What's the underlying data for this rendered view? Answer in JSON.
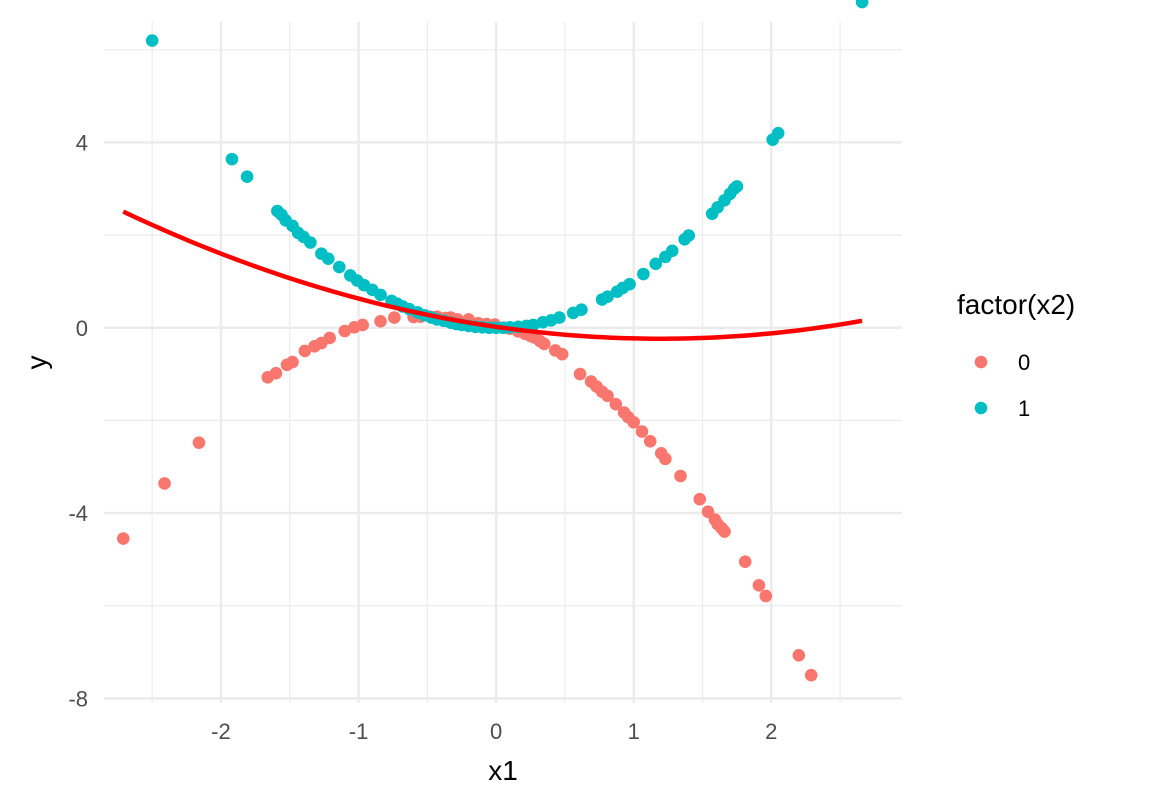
{
  "chart_data": {
    "type": "scatter",
    "title": "",
    "xlabel": "x1",
    "ylabel": "y",
    "xlim": [
      -2.85,
      2.95
    ],
    "ylim": [
      -8.1,
      6.6
    ],
    "x_ticks": [
      -2,
      -1,
      0,
      1,
      2
    ],
    "x_tick_labels": [
      "-2",
      "-1",
      "0",
      "1",
      "2"
    ],
    "y_ticks": [
      -8,
      -4,
      0,
      4
    ],
    "y_tick_labels": [
      "-8",
      "-4",
      "0",
      "4"
    ],
    "grid": true,
    "legend": {
      "title": "factor(x2)",
      "position": "right",
      "entries": [
        {
          "label": "0",
          "color": "#F8766D"
        },
        {
          "label": "1",
          "color": "#00BFC4"
        }
      ]
    },
    "series": [
      {
        "name": "0",
        "color": "#F8766D",
        "points": [
          [
            -2.71,
            -4.55
          ],
          [
            -2.41,
            -3.36
          ],
          [
            -2.16,
            -2.48
          ],
          [
            -1.66,
            -1.07
          ],
          [
            -1.6,
            -0.98
          ],
          [
            -1.52,
            -0.8
          ],
          [
            -1.48,
            -0.74
          ],
          [
            -1.39,
            -0.5
          ],
          [
            -1.32,
            -0.4
          ],
          [
            -1.27,
            -0.33
          ],
          [
            -1.21,
            -0.22
          ],
          [
            -1.1,
            -0.07
          ],
          [
            -1.03,
            0.01
          ],
          [
            -0.97,
            0.06
          ],
          [
            -0.84,
            0.14
          ],
          [
            -0.74,
            0.22
          ],
          [
            -0.6,
            0.23
          ],
          [
            -0.55,
            0.24
          ],
          [
            -0.48,
            0.24
          ],
          [
            -0.43,
            0.24
          ],
          [
            -0.37,
            0.21
          ],
          [
            -0.33,
            0.22
          ],
          [
            -0.28,
            0.18
          ],
          [
            -0.2,
            0.18
          ],
          [
            -0.13,
            0.1
          ],
          [
            -0.07,
            0.08
          ],
          [
            -0.01,
            0.07
          ],
          [
            0.06,
            0.0
          ],
          [
            0.1,
            -0.02
          ],
          [
            0.16,
            -0.08
          ],
          [
            0.21,
            -0.13
          ],
          [
            0.25,
            -0.18
          ],
          [
            0.28,
            -0.21
          ],
          [
            0.32,
            -0.29
          ],
          [
            0.35,
            -0.35
          ],
          [
            0.43,
            -0.49
          ],
          [
            0.48,
            -0.57
          ],
          [
            0.61,
            -1.0
          ],
          [
            0.69,
            -1.16
          ],
          [
            0.73,
            -1.27
          ],
          [
            0.77,
            -1.38
          ],
          [
            0.81,
            -1.47
          ],
          [
            0.87,
            -1.65
          ],
          [
            0.93,
            -1.83
          ],
          [
            0.96,
            -1.93
          ],
          [
            1.0,
            -2.04
          ],
          [
            1.06,
            -2.24
          ],
          [
            1.12,
            -2.45
          ],
          [
            1.2,
            -2.71
          ],
          [
            1.23,
            -2.83
          ],
          [
            1.34,
            -3.2
          ],
          [
            1.48,
            -3.7
          ],
          [
            1.54,
            -3.97
          ],
          [
            1.59,
            -4.14
          ],
          [
            1.61,
            -4.24
          ],
          [
            1.64,
            -4.33
          ],
          [
            1.66,
            -4.4
          ],
          [
            1.81,
            -5.05
          ],
          [
            1.91,
            -5.56
          ],
          [
            1.96,
            -5.79
          ],
          [
            2.2,
            -7.07
          ],
          [
            2.29,
            -7.5
          ]
        ]
      },
      {
        "name": "1",
        "color": "#00BFC4",
        "points": [
          [
            -2.5,
            6.2
          ],
          [
            -1.92,
            3.64
          ],
          [
            -1.81,
            3.26
          ],
          [
            -1.59,
            2.52
          ],
          [
            -1.56,
            2.44
          ],
          [
            -1.53,
            2.32
          ],
          [
            -1.48,
            2.2
          ],
          [
            -1.44,
            2.05
          ],
          [
            -1.4,
            1.96
          ],
          [
            -1.35,
            1.84
          ],
          [
            -1.27,
            1.6
          ],
          [
            -1.22,
            1.49
          ],
          [
            -1.14,
            1.31
          ],
          [
            -1.06,
            1.13
          ],
          [
            -1.01,
            1.02
          ],
          [
            -0.96,
            0.92
          ],
          [
            -0.9,
            0.82
          ],
          [
            -0.84,
            0.71
          ],
          [
            -0.76,
            0.58
          ],
          [
            -0.72,
            0.52
          ],
          [
            -0.68,
            0.46
          ],
          [
            -0.63,
            0.4
          ],
          [
            -0.57,
            0.33
          ],
          [
            -0.52,
            0.27
          ],
          [
            -0.47,
            0.22
          ],
          [
            -0.43,
            0.18
          ],
          [
            -0.38,
            0.15
          ],
          [
            -0.33,
            0.11
          ],
          [
            -0.29,
            0.08
          ],
          [
            -0.25,
            0.06
          ],
          [
            -0.2,
            0.04
          ],
          [
            -0.15,
            0.02
          ],
          [
            -0.1,
            0.01
          ],
          [
            -0.05,
            0.0
          ],
          [
            0.0,
            0.0
          ],
          [
            0.05,
            0.0
          ],
          [
            0.1,
            0.01
          ],
          [
            0.16,
            0.02
          ],
          [
            0.22,
            0.04
          ],
          [
            0.27,
            0.06
          ],
          [
            0.34,
            0.12
          ],
          [
            0.4,
            0.16
          ],
          [
            0.46,
            0.22
          ],
          [
            0.56,
            0.32
          ],
          [
            0.62,
            0.39
          ],
          [
            0.77,
            0.61
          ],
          [
            0.81,
            0.67
          ],
          [
            0.88,
            0.78
          ],
          [
            0.92,
            0.86
          ],
          [
            0.97,
            0.94
          ],
          [
            1.07,
            1.16
          ],
          [
            1.16,
            1.38
          ],
          [
            1.23,
            1.53
          ],
          [
            1.28,
            1.66
          ],
          [
            1.37,
            1.91
          ],
          [
            1.4,
            1.99
          ],
          [
            1.57,
            2.46
          ],
          [
            1.61,
            2.6
          ],
          [
            1.66,
            2.75
          ],
          [
            1.7,
            2.89
          ],
          [
            1.73,
            3.0
          ],
          [
            1.75,
            3.05
          ],
          [
            2.01,
            4.06
          ],
          [
            2.05,
            4.2
          ],
          [
            2.66,
            7.03
          ]
        ]
      }
    ],
    "fit_line": {
      "color": "#FF0000",
      "type": "quadratic",
      "x_range": [
        -2.71,
        2.66
      ],
      "coefficients": [
        0.02,
        -0.43,
        0.18
      ]
    }
  }
}
